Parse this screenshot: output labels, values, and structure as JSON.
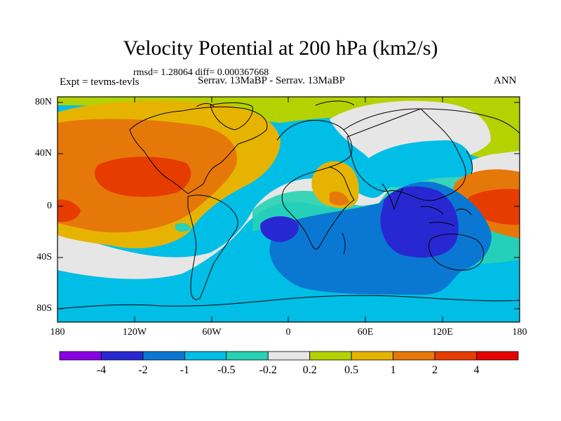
{
  "title": "Velocity Potential at 200 hPa (km2/s)",
  "stats": "rmsd= 1.28064 diff= 0.000367668",
  "left_label": "Expt = tevms-tevls",
  "center_label": "Serrav.   13MaBP - Serrav.   13MaBP",
  "right_label": "ANN",
  "lat_labels": [
    "80N",
    "40N",
    "0",
    "40S",
    "80S"
  ],
  "lon_labels": [
    "180",
    "120W",
    "60W",
    "0",
    "60E",
    "120E",
    "180"
  ],
  "colorbar": {
    "labels": [
      "-4",
      "-2",
      "-1",
      "-0.5",
      "-0.2",
      "0.2",
      "0.5",
      "1",
      "2",
      "4"
    ],
    "colors": [
      "#8a00e6",
      "#2828d2",
      "#0a78d2",
      "#00bee6",
      "#28d2b4",
      "#e6e6e6",
      "#b4d200",
      "#e6b400",
      "#e6780a",
      "#e63c00",
      "#e60000"
    ]
  }
}
